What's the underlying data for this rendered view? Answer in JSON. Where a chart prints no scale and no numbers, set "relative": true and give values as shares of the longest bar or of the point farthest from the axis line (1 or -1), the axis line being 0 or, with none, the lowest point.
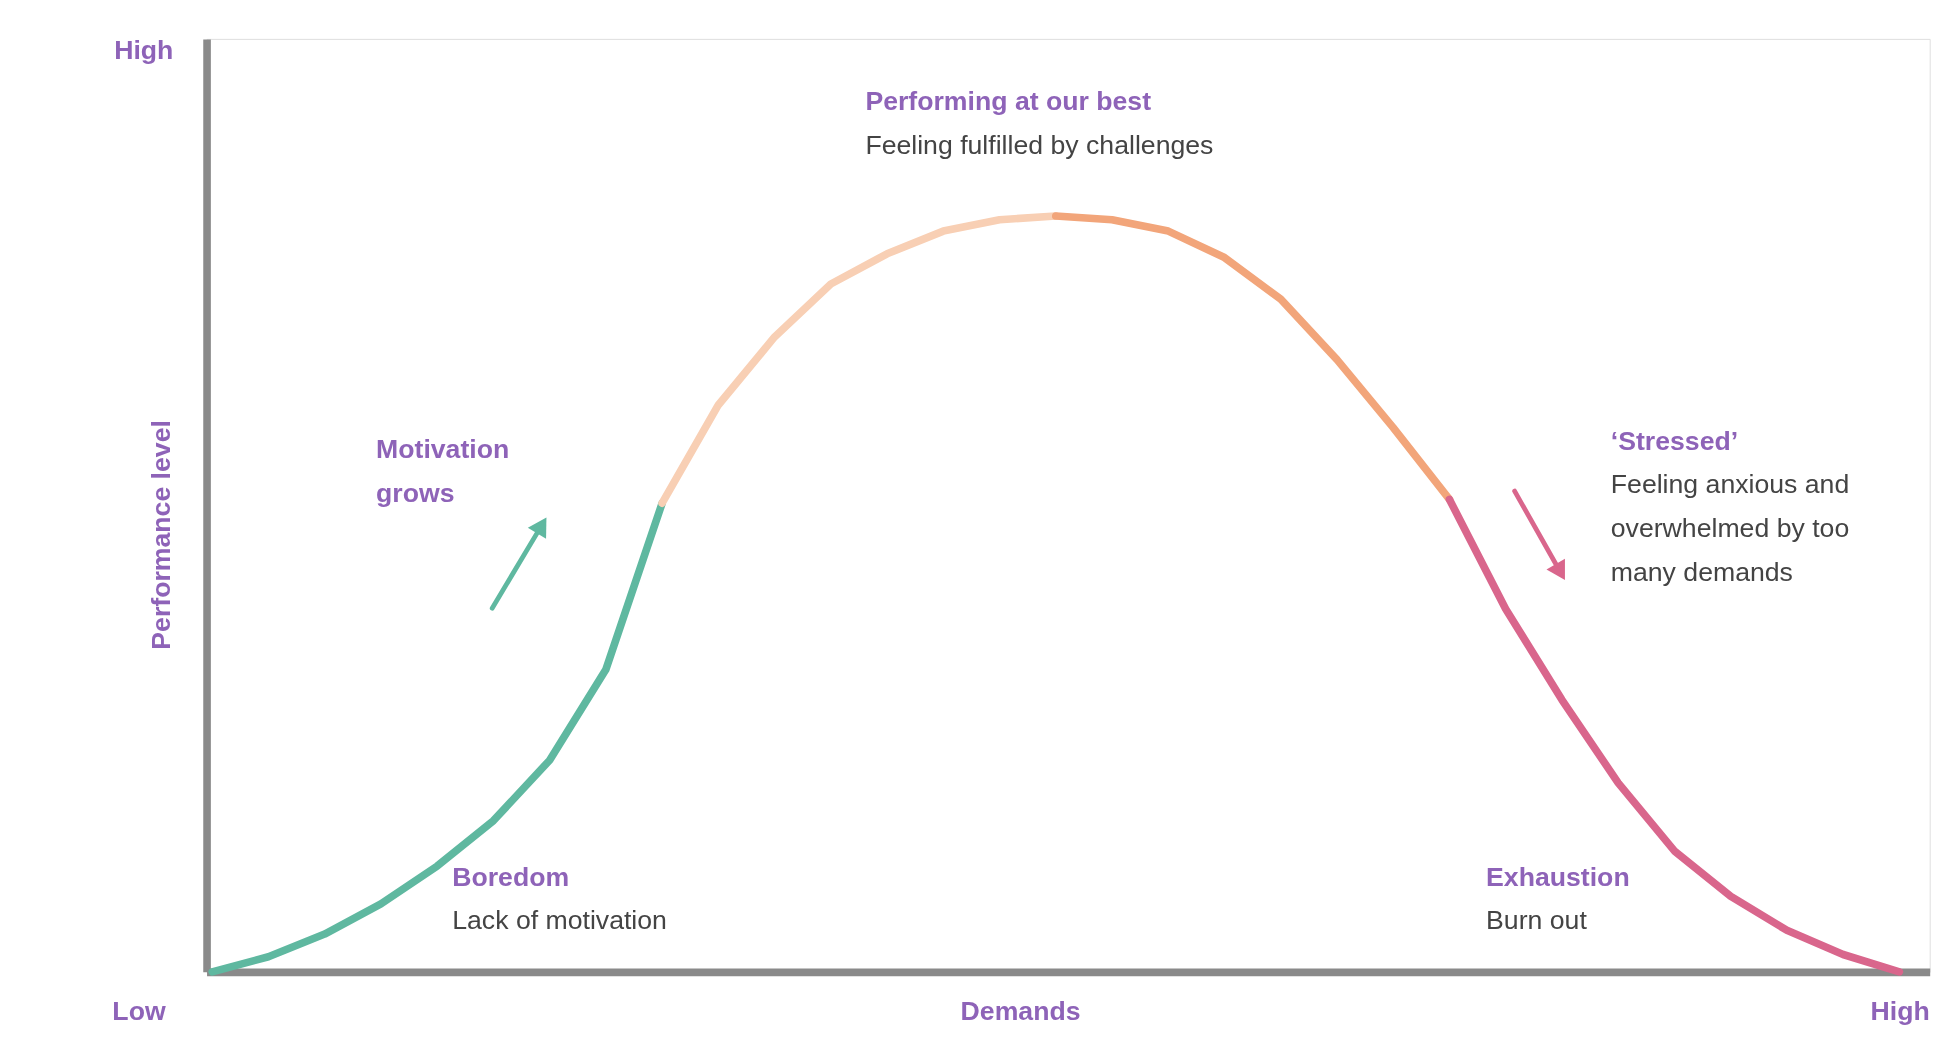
{
  "chart_data": {
    "type": "line",
    "relative": true,
    "grid": false,
    "legend": false,
    "xlabel": "Demands",
    "ylabel": "Performance level",
    "categories": [
      null,
      null,
      null,
      null,
      null,
      null,
      null,
      null,
      null,
      null,
      null,
      null,
      null,
      null,
      null,
      null,
      null,
      null,
      null,
      null,
      null,
      null,
      null,
      null,
      null,
      null,
      null,
      null,
      null,
      null,
      null
    ],
    "series": [
      {
        "color": "#5fb8a0",
        "values": [
          0,
          0.02,
          0.05,
          0.09,
          0.14,
          0.2,
          0.28,
          0.4,
          0.62,
          null,
          null,
          null,
          null,
          null,
          null,
          null,
          null,
          null,
          null,
          null,
          null,
          null,
          null,
          null,
          null,
          null,
          null,
          null,
          null,
          null,
          null
        ]
      },
      {
        "color": "#f8cfb4",
        "values": [
          null,
          null,
          null,
          null,
          null,
          null,
          null,
          null,
          0.62,
          0.75,
          0.84,
          0.91,
          0.95,
          0.98,
          0.995,
          1,
          null,
          null,
          null,
          null,
          null,
          null,
          null,
          null,
          null,
          null,
          null,
          null,
          null,
          null,
          null
        ]
      },
      {
        "color": "#f2a57a",
        "values": [
          null,
          null,
          null,
          null,
          null,
          null,
          null,
          null,
          null,
          null,
          null,
          null,
          null,
          null,
          null,
          1,
          0.995,
          0.98,
          0.945,
          0.89,
          0.81,
          0.72,
          0.625,
          null,
          null,
          null,
          null,
          null,
          null,
          null,
          null
        ]
      },
      {
        "color": "#d9668c",
        "values": [
          null,
          null,
          null,
          null,
          null,
          null,
          null,
          null,
          null,
          null,
          null,
          null,
          null,
          null,
          null,
          null,
          null,
          null,
          null,
          null,
          null,
          null,
          0.625,
          0.48,
          0.36,
          0.25,
          0.16,
          0.1,
          0.055,
          0.023,
          0
        ]
      }
    ],
    "annotations": [
      "Performing at our best",
      "Feeling fulfilled by challenges",
      "Motivation\ngrows",
      "‘Stressed’",
      "Feeling anxious and\noverwhelmed by too\nmany demands",
      "Boredom",
      "Lack of motivation",
      "Exhaustion",
      "Burn out",
      "High",
      "Low",
      "High"
    ]
  }
}
